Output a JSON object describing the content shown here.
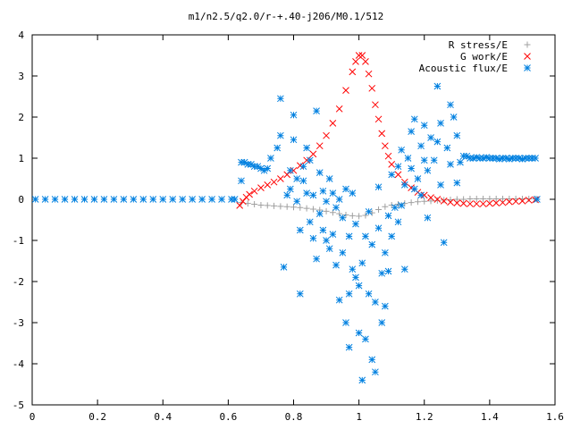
{
  "chart_data": {
    "type": "scatter",
    "title": "m1/n2.5/q2.0/r-+.40-j206/M0.1/512",
    "xlabel": "",
    "ylabel": "",
    "xlim": [
      0,
      1.6
    ],
    "ylim": [
      -5,
      4
    ],
    "x_ticks": [
      "0",
      "0.2",
      "0.4",
      "0.6",
      "0.8",
      "1",
      "1.2",
      "1.4",
      "1.6"
    ],
    "y_ticks": [
      "-5",
      "-4",
      "-3",
      "-2",
      "-1",
      "0",
      "1",
      "2",
      "3",
      "4"
    ],
    "grid": false,
    "legend_position": "top-right",
    "series": [
      {
        "name": "R stress/E",
        "marker": "plus",
        "color": "#a0a0a0",
        "points": [
          [
            0.64,
            -0.08
          ],
          [
            0.66,
            -0.1
          ],
          [
            0.68,
            -0.12
          ],
          [
            0.7,
            -0.14
          ],
          [
            0.72,
            -0.15
          ],
          [
            0.74,
            -0.16
          ],
          [
            0.76,
            -0.17
          ],
          [
            0.78,
            -0.18
          ],
          [
            0.8,
            -0.19
          ],
          [
            0.82,
            -0.2
          ],
          [
            0.84,
            -0.22
          ],
          [
            0.86,
            -0.24
          ],
          [
            0.88,
            -0.26
          ],
          [
            0.9,
            -0.29
          ],
          [
            0.92,
            -0.32
          ],
          [
            0.94,
            -0.35
          ],
          [
            0.96,
            -0.38
          ],
          [
            0.98,
            -0.4
          ],
          [
            1.0,
            -0.41
          ],
          [
            1.02,
            -0.39
          ],
          [
            1.04,
            -0.33
          ],
          [
            1.06,
            -0.25
          ],
          [
            1.08,
            -0.18
          ],
          [
            1.1,
            -0.14
          ],
          [
            1.12,
            -0.12
          ],
          [
            1.14,
            -0.1
          ],
          [
            1.16,
            -0.08
          ],
          [
            1.18,
            -0.06
          ],
          [
            1.2,
            -0.05
          ],
          [
            1.22,
            -0.04
          ],
          [
            1.24,
            -0.03
          ],
          [
            1.26,
            -0.02
          ],
          [
            1.28,
            -0.01
          ],
          [
            1.3,
            0.0
          ],
          [
            1.32,
            0.0
          ],
          [
            1.34,
            0.01
          ],
          [
            1.36,
            0.01
          ],
          [
            1.38,
            0.01
          ],
          [
            1.4,
            0.01
          ],
          [
            1.42,
            0.01
          ],
          [
            1.44,
            0.01
          ],
          [
            1.46,
            0.01
          ],
          [
            1.48,
            0.01
          ],
          [
            1.5,
            0.01
          ],
          [
            1.52,
            0.01
          ],
          [
            1.54,
            0.01
          ]
        ]
      },
      {
        "name": "G work/E",
        "marker": "cross",
        "color": "#ff0000",
        "points": [
          [
            0.635,
            -0.15
          ],
          [
            0.645,
            -0.05
          ],
          [
            0.655,
            0.05
          ],
          [
            0.665,
            0.12
          ],
          [
            0.68,
            0.2
          ],
          [
            0.7,
            0.28
          ],
          [
            0.72,
            0.35
          ],
          [
            0.74,
            0.42
          ],
          [
            0.76,
            0.5
          ],
          [
            0.78,
            0.6
          ],
          [
            0.8,
            0.7
          ],
          [
            0.82,
            0.82
          ],
          [
            0.84,
            0.95
          ],
          [
            0.86,
            1.1
          ],
          [
            0.88,
            1.3
          ],
          [
            0.9,
            1.55
          ],
          [
            0.92,
            1.85
          ],
          [
            0.94,
            2.2
          ],
          [
            0.96,
            2.65
          ],
          [
            0.98,
            3.1
          ],
          [
            0.99,
            3.35
          ],
          [
            1.0,
            3.5
          ],
          [
            1.01,
            3.5
          ],
          [
            1.02,
            3.35
          ],
          [
            1.03,
            3.05
          ],
          [
            1.04,
            2.7
          ],
          [
            1.05,
            2.3
          ],
          [
            1.06,
            1.95
          ],
          [
            1.07,
            1.6
          ],
          [
            1.08,
            1.3
          ],
          [
            1.09,
            1.05
          ],
          [
            1.1,
            0.85
          ],
          [
            1.12,
            0.6
          ],
          [
            1.14,
            0.42
          ],
          [
            1.16,
            0.28
          ],
          [
            1.18,
            0.17
          ],
          [
            1.2,
            0.1
          ],
          [
            1.22,
            0.04
          ],
          [
            1.24,
            0.0
          ],
          [
            1.26,
            -0.04
          ],
          [
            1.28,
            -0.07
          ],
          [
            1.3,
            -0.09
          ],
          [
            1.32,
            -0.1
          ],
          [
            1.34,
            -0.11
          ],
          [
            1.36,
            -0.11
          ],
          [
            1.38,
            -0.11
          ],
          [
            1.4,
            -0.1
          ],
          [
            1.42,
            -0.09
          ],
          [
            1.44,
            -0.08
          ],
          [
            1.46,
            -0.06
          ],
          [
            1.48,
            -0.05
          ],
          [
            1.5,
            -0.04
          ],
          [
            1.52,
            -0.02
          ],
          [
            1.54,
            -0.01
          ]
        ]
      },
      {
        "name": "Acoustic flux/E",
        "marker": "star",
        "color": "#0080e0",
        "points": [
          [
            0.01,
            0
          ],
          [
            0.04,
            0
          ],
          [
            0.07,
            0
          ],
          [
            0.1,
            0
          ],
          [
            0.13,
            0
          ],
          [
            0.16,
            0
          ],
          [
            0.19,
            0
          ],
          [
            0.22,
            0
          ],
          [
            0.25,
            0
          ],
          [
            0.28,
            0
          ],
          [
            0.31,
            0
          ],
          [
            0.34,
            0
          ],
          [
            0.37,
            0
          ],
          [
            0.4,
            0
          ],
          [
            0.43,
            0
          ],
          [
            0.46,
            0
          ],
          [
            0.49,
            0
          ],
          [
            0.52,
            0
          ],
          [
            0.55,
            0
          ],
          [
            0.58,
            0
          ],
          [
            0.61,
            0
          ],
          [
            0.62,
            0
          ],
          [
            0.64,
            0.45
          ],
          [
            0.64,
            0.9
          ],
          [
            0.65,
            0.9
          ],
          [
            0.66,
            0.85
          ],
          [
            0.67,
            0.85
          ],
          [
            0.68,
            0.8
          ],
          [
            0.69,
            0.8
          ],
          [
            0.7,
            0.75
          ],
          [
            0.71,
            0.7
          ],
          [
            0.72,
            0.75
          ],
          [
            0.73,
            1.0
          ],
          [
            0.75,
            1.25
          ],
          [
            0.76,
            1.55
          ],
          [
            0.76,
            2.45
          ],
          [
            0.77,
            -1.65
          ],
          [
            0.78,
            0.1
          ],
          [
            0.79,
            0.25
          ],
          [
            0.79,
            0.7
          ],
          [
            0.8,
            1.45
          ],
          [
            0.8,
            2.05
          ],
          [
            0.81,
            -0.05
          ],
          [
            0.81,
            0.5
          ],
          [
            0.82,
            -0.75
          ],
          [
            0.82,
            -2.3
          ],
          [
            0.83,
            0.45
          ],
          [
            0.83,
            0.8
          ],
          [
            0.84,
            0.15
          ],
          [
            0.84,
            1.25
          ],
          [
            0.85,
            0.95
          ],
          [
            0.85,
            -0.55
          ],
          [
            0.86,
            0.1
          ],
          [
            0.86,
            -0.95
          ],
          [
            0.87,
            2.15
          ],
          [
            0.87,
            -1.45
          ],
          [
            0.88,
            -0.35
          ],
          [
            0.88,
            0.65
          ],
          [
            0.89,
            0.2
          ],
          [
            0.89,
            -0.75
          ],
          [
            0.9,
            -0.05
          ],
          [
            0.9,
            -1.0
          ],
          [
            0.91,
            0.5
          ],
          [
            0.91,
            -1.2
          ],
          [
            0.92,
            -0.85
          ],
          [
            0.92,
            0.15
          ],
          [
            0.93,
            -0.2
          ],
          [
            0.93,
            -1.6
          ],
          [
            0.94,
            -2.45
          ],
          [
            0.94,
            0.0
          ],
          [
            0.95,
            -0.45
          ],
          [
            0.95,
            -1.3
          ],
          [
            0.96,
            -3.0
          ],
          [
            0.96,
            0.25
          ],
          [
            0.97,
            -0.9
          ],
          [
            0.97,
            -2.3
          ],
          [
            0.97,
            -3.6
          ],
          [
            0.98,
            -1.7
          ],
          [
            0.98,
            0.15
          ],
          [
            0.99,
            -0.6
          ],
          [
            0.99,
            -1.9
          ],
          [
            1.0,
            -3.25
          ],
          [
            1.0,
            -2.1
          ],
          [
            1.01,
            -4.4
          ],
          [
            1.01,
            -1.55
          ],
          [
            1.02,
            -3.4
          ],
          [
            1.02,
            -0.9
          ],
          [
            1.03,
            -2.3
          ],
          [
            1.03,
            -0.3
          ],
          [
            1.04,
            -3.9
          ],
          [
            1.04,
            -1.1
          ],
          [
            1.05,
            -4.2
          ],
          [
            1.05,
            -2.5
          ],
          [
            1.06,
            -0.7
          ],
          [
            1.06,
            0.3
          ],
          [
            1.07,
            -3.0
          ],
          [
            1.07,
            -1.8
          ],
          [
            1.08,
            -2.6
          ],
          [
            1.08,
            -1.3
          ],
          [
            1.09,
            -1.75
          ],
          [
            1.09,
            -0.4
          ],
          [
            1.1,
            -0.9
          ],
          [
            1.1,
            0.6
          ],
          [
            1.11,
            -0.2
          ],
          [
            1.12,
            -0.55
          ],
          [
            1.12,
            0.8
          ],
          [
            1.13,
            -0.15
          ],
          [
            1.13,
            1.2
          ],
          [
            1.14,
            0.35
          ],
          [
            1.14,
            -1.7
          ],
          [
            1.15,
            1.0
          ],
          [
            1.16,
            0.75
          ],
          [
            1.16,
            1.65
          ],
          [
            1.17,
            0.25
          ],
          [
            1.17,
            1.95
          ],
          [
            1.18,
            0.5
          ],
          [
            1.19,
            1.3
          ],
          [
            1.19,
            0.1
          ],
          [
            1.2,
            0.95
          ],
          [
            1.2,
            1.8
          ],
          [
            1.21,
            0.7
          ],
          [
            1.21,
            -0.45
          ],
          [
            1.22,
            1.5
          ],
          [
            1.23,
            0.95
          ],
          [
            1.24,
            1.4
          ],
          [
            1.24,
            2.75
          ],
          [
            1.25,
            0.35
          ],
          [
            1.25,
            1.85
          ],
          [
            1.26,
            -1.05
          ],
          [
            1.27,
            1.25
          ],
          [
            1.28,
            0.85
          ],
          [
            1.28,
            2.3
          ],
          [
            1.29,
            2.0
          ],
          [
            1.3,
            0.4
          ],
          [
            1.3,
            1.55
          ],
          [
            1.31,
            0.9
          ],
          [
            1.32,
            1.05
          ],
          [
            1.33,
            1.05
          ],
          [
            1.34,
            1.0
          ],
          [
            1.35,
            1.0
          ],
          [
            1.36,
            1.02
          ],
          [
            1.37,
            1.0
          ],
          [
            1.38,
            1.0
          ],
          [
            1.39,
            1.02
          ],
          [
            1.4,
            1.0
          ],
          [
            1.41,
            1.0
          ],
          [
            1.42,
            1.0
          ],
          [
            1.43,
            0.98
          ],
          [
            1.44,
            1.0
          ],
          [
            1.45,
            1.0
          ],
          [
            1.46,
            0.98
          ],
          [
            1.47,
            1.0
          ],
          [
            1.48,
            1.0
          ],
          [
            1.49,
            1.0
          ],
          [
            1.5,
            0.98
          ],
          [
            1.51,
            1.0
          ],
          [
            1.52,
            1.0
          ],
          [
            1.53,
            1.0
          ],
          [
            1.54,
            1.0
          ],
          [
            1.545,
            0.0
          ]
        ]
      }
    ]
  }
}
